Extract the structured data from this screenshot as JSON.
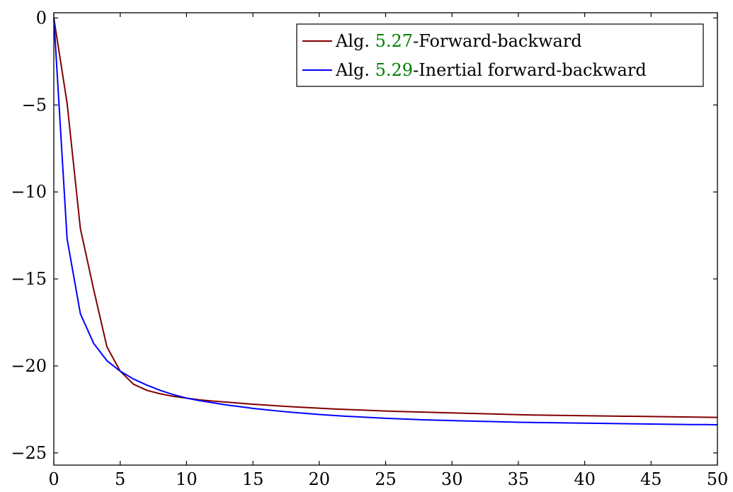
{
  "chart_data": {
    "type": "line",
    "xlim": [
      0,
      50
    ],
    "ylim": [
      -25.7,
      0.3
    ],
    "x_ticks": [
      0,
      5,
      10,
      15,
      20,
      25,
      30,
      35,
      40,
      45,
      50
    ],
    "x_tick_labels": [
      "0",
      "5",
      "10",
      "15",
      "20",
      "25",
      "30",
      "35",
      "40",
      "45",
      "50"
    ],
    "y_ticks": [
      0,
      -5,
      -10,
      -15,
      -20,
      -25
    ],
    "y_tick_labels": [
      "0",
      "−5",
      "−10",
      "−15",
      "−20",
      "−25"
    ],
    "grid": false,
    "legend_position": "top-right",
    "series": [
      {
        "name": "Alg. 5.27-Forward-backward",
        "legend": {
          "prefix": "Alg. ",
          "ref": "5.27",
          "suffix": "-Forward-backward"
        },
        "color": "#800000",
        "x": [
          0,
          1,
          2,
          3,
          4,
          5,
          6,
          7,
          8,
          9,
          10,
          11,
          12,
          13,
          14,
          15,
          16,
          17,
          18,
          19,
          20,
          21,
          22,
          23,
          24,
          25,
          26,
          27,
          28,
          29,
          30,
          31,
          32,
          33,
          34,
          35,
          36,
          37,
          38,
          39,
          40,
          41,
          42,
          43,
          44,
          45,
          46,
          47,
          48,
          49,
          50
        ],
        "y": [
          0,
          -4.9,
          -12.1,
          -15.6,
          -18.9,
          -20.3,
          -21.05,
          -21.4,
          -21.6,
          -21.75,
          -21.85,
          -21.95,
          -22.02,
          -22.08,
          -22.14,
          -22.2,
          -22.25,
          -22.3,
          -22.35,
          -22.39,
          -22.43,
          -22.47,
          -22.5,
          -22.53,
          -22.56,
          -22.59,
          -22.62,
          -22.64,
          -22.66,
          -22.68,
          -22.7,
          -22.72,
          -22.74,
          -22.76,
          -22.78,
          -22.8,
          -22.82,
          -22.83,
          -22.84,
          -22.85,
          -22.86,
          -22.87,
          -22.88,
          -22.89,
          -22.9,
          -22.91,
          -22.92,
          -22.93,
          -22.94,
          -22.95,
          -22.96
        ]
      },
      {
        "name": "Alg. 5.29-Inertial forward-backward",
        "legend": {
          "prefix": "Alg. ",
          "ref": "5.29",
          "suffix": "-Inertial forward-backward"
        },
        "color": "#0000ff",
        "x": [
          0,
          1,
          2,
          3,
          4,
          5,
          6,
          7,
          8,
          9,
          10,
          11,
          12,
          13,
          14,
          15,
          16,
          17,
          18,
          19,
          20,
          21,
          22,
          23,
          24,
          25,
          26,
          27,
          28,
          29,
          30,
          31,
          32,
          33,
          34,
          35,
          36,
          37,
          38,
          39,
          40,
          41,
          42,
          43,
          44,
          45,
          46,
          47,
          48,
          49,
          50
        ],
        "y": [
          0,
          -12.7,
          -17.0,
          -18.7,
          -19.7,
          -20.3,
          -20.75,
          -21.1,
          -21.4,
          -21.65,
          -21.85,
          -22.0,
          -22.12,
          -22.24,
          -22.34,
          -22.44,
          -22.52,
          -22.6,
          -22.67,
          -22.73,
          -22.79,
          -22.84,
          -22.89,
          -22.93,
          -22.97,
          -23.01,
          -23.04,
          -23.07,
          -23.1,
          -23.12,
          -23.14,
          -23.16,
          -23.18,
          -23.2,
          -23.22,
          -23.24,
          -23.25,
          -23.26,
          -23.27,
          -23.28,
          -23.29,
          -23.3,
          -23.31,
          -23.32,
          -23.33,
          -23.34,
          -23.35,
          -23.36,
          -23.37,
          -23.37,
          -23.38
        ]
      }
    ]
  }
}
